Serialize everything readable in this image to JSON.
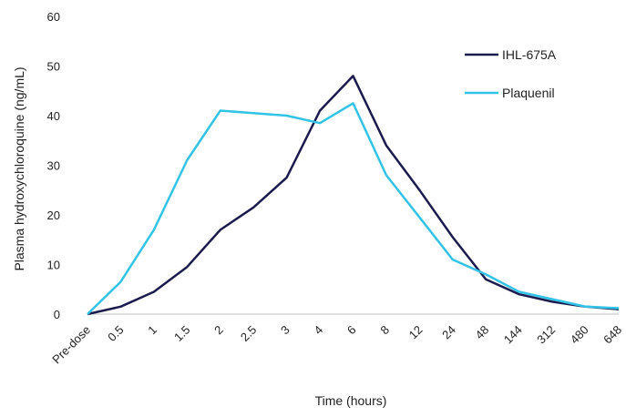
{
  "chart_data": {
    "type": "line",
    "title": "",
    "xlabel": "Time (hours)",
    "ylabel": "Plasma hydroxychloroquine (ng/mL)",
    "ylim": [
      0,
      60
    ],
    "yticks": [
      0,
      10,
      20,
      30,
      40,
      50,
      60
    ],
    "grid": false,
    "legend_position": "top-right",
    "categories": [
      "Pre-dose",
      "0.5",
      "1",
      "1.5",
      "2",
      "2.5",
      "3",
      "4",
      "6",
      "8",
      "12",
      "24",
      "48",
      "144",
      "312",
      "480",
      "648"
    ],
    "series": [
      {
        "name": "IHL-675A",
        "color": "#1b1b4d",
        "values": [
          0,
          1.5,
          4.5,
          9.5,
          17,
          21.5,
          27.5,
          41,
          48,
          34,
          25,
          15.5,
          7,
          4,
          2.5,
          1.5,
          1
        ]
      },
      {
        "name": "Plaquenil",
        "color": "#33c3e6",
        "values": [
          0,
          6.5,
          17,
          31,
          41,
          40.5,
          40,
          38.5,
          42.5,
          28,
          19.5,
          11,
          8,
          4.5,
          3,
          1.5,
          1.2
        ]
      }
    ]
  }
}
